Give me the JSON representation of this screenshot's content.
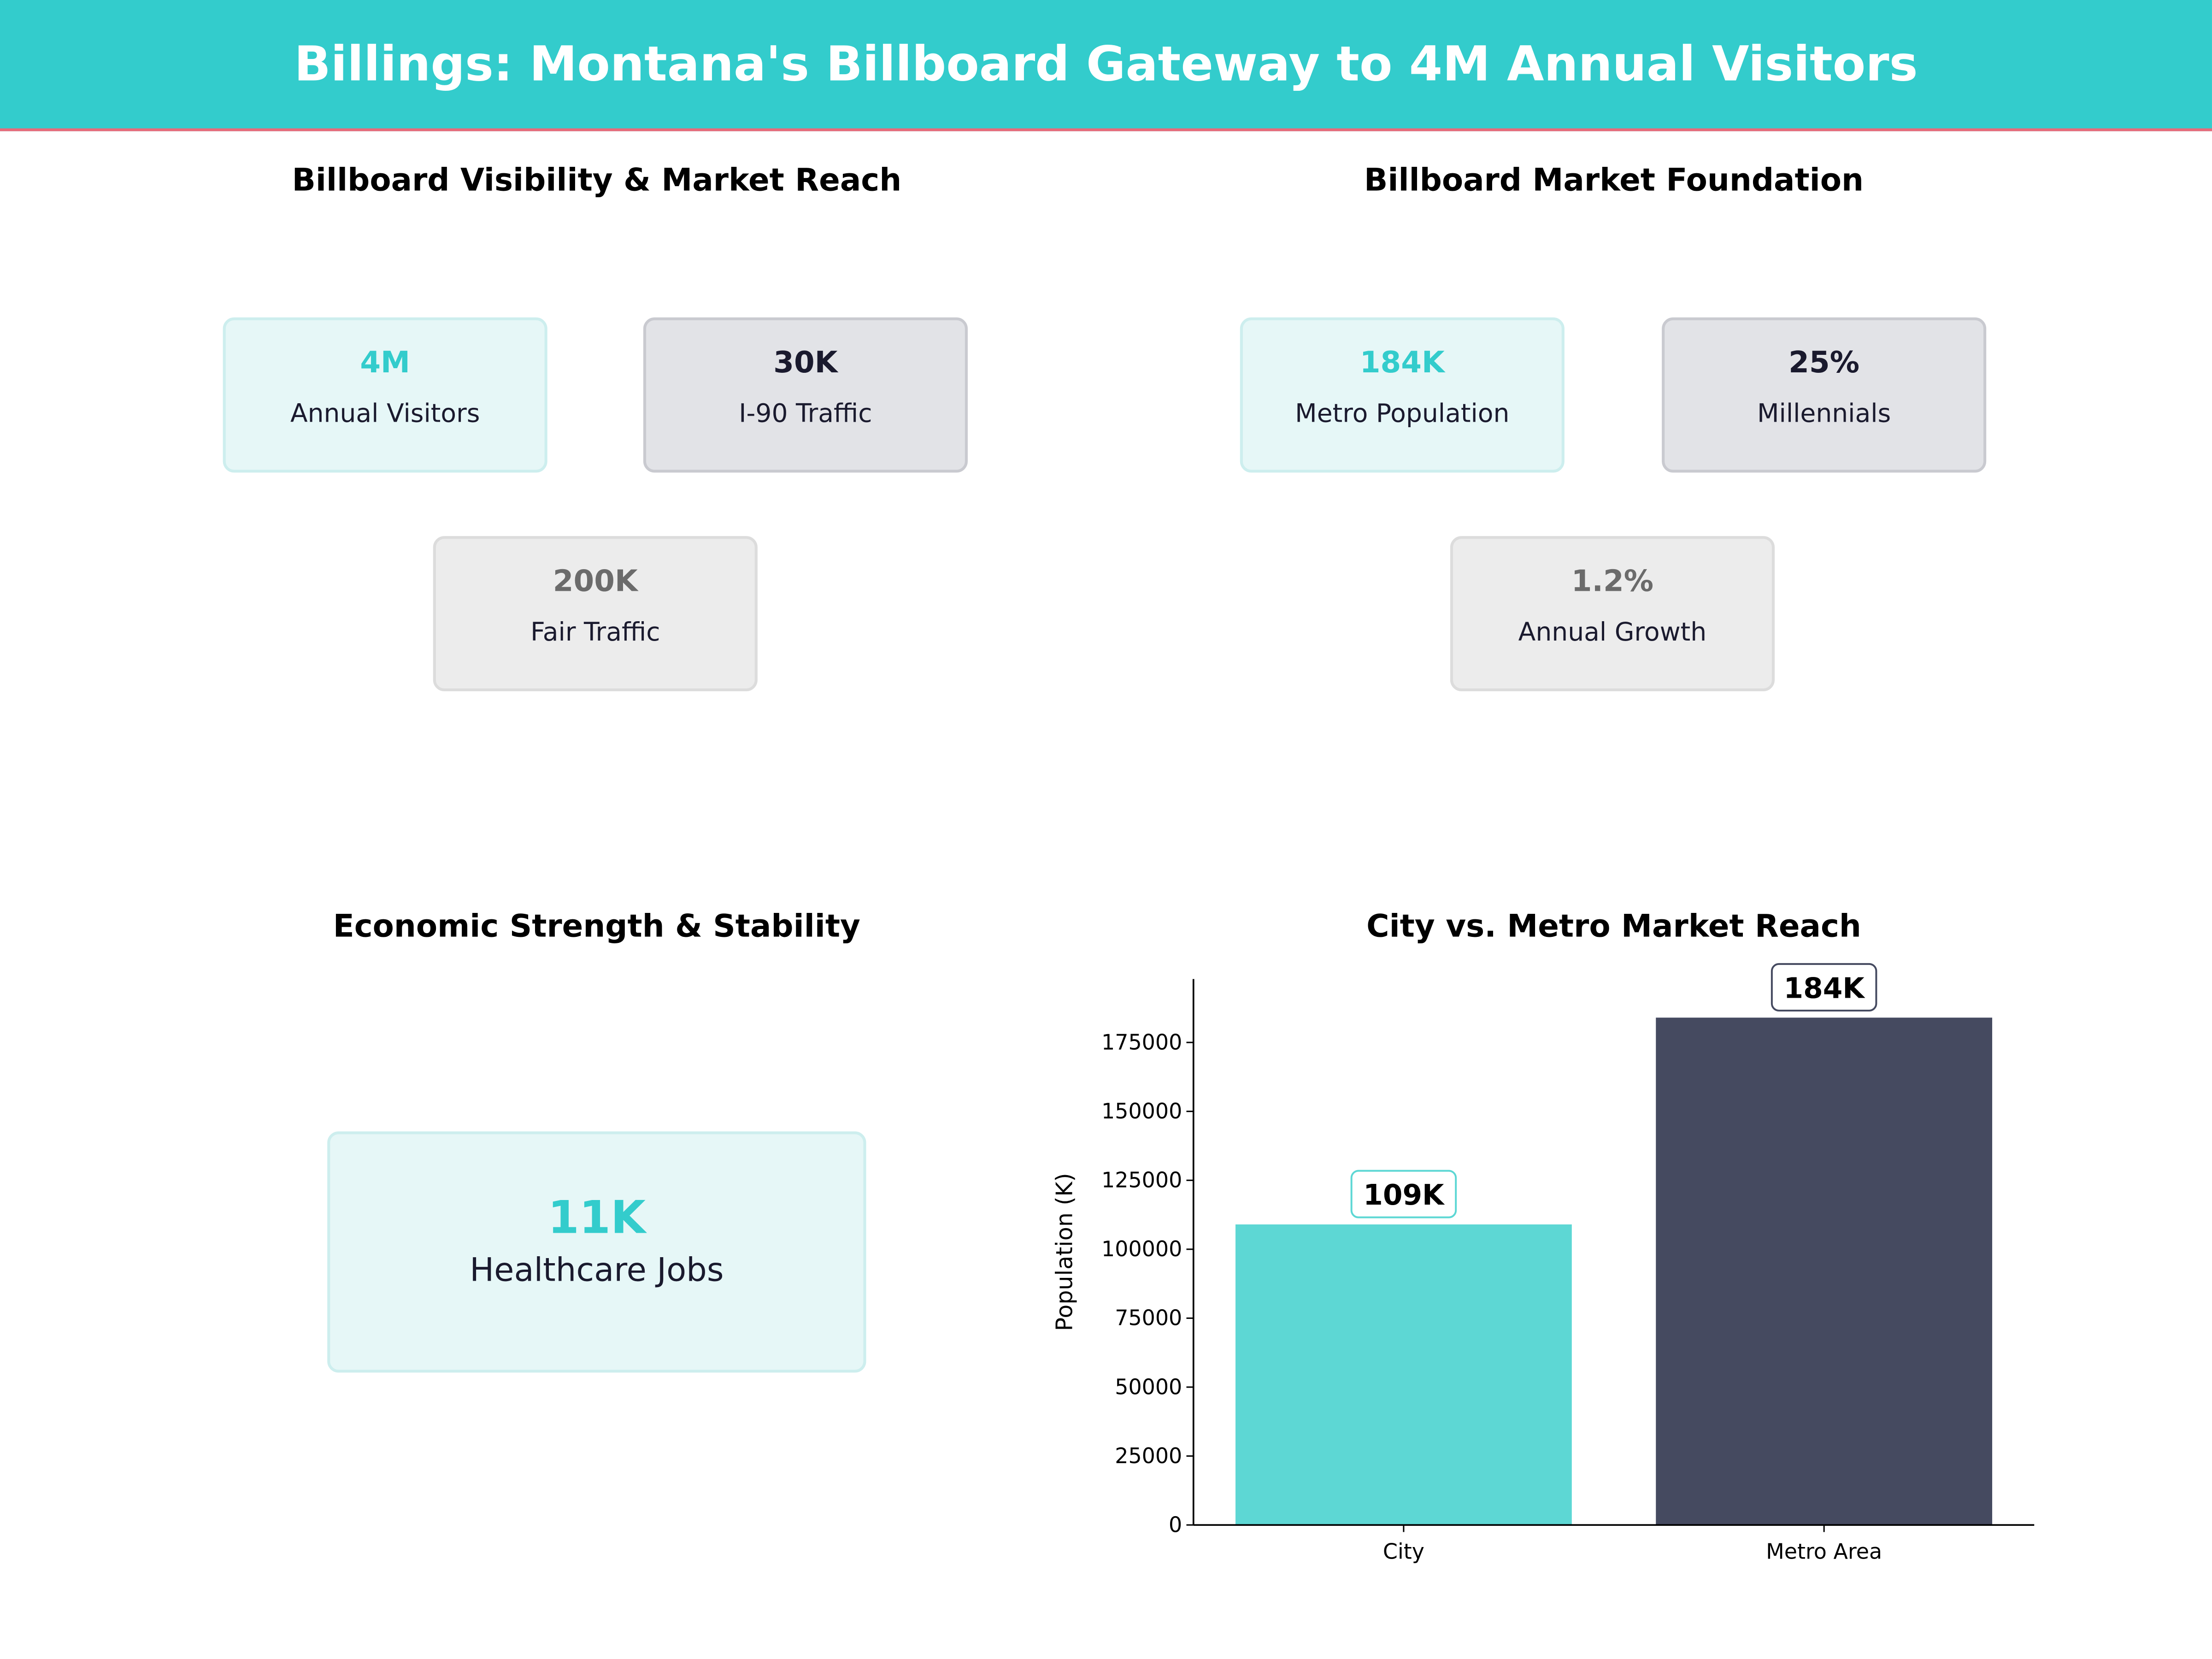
{
  "header": {
    "title": "Billings: Montana's Billboard Gateway to 4M Annual Visitors"
  },
  "panels": {
    "visibility": {
      "title": "Billboard Visibility & Market Reach",
      "cards": [
        {
          "value": "4M",
          "label": "Annual Visitors",
          "style": "teal"
        },
        {
          "value": "30K",
          "label": "I-90 Traffic",
          "style": "dark"
        },
        {
          "value": "200K",
          "label": "Fair Traffic",
          "style": "light"
        }
      ]
    },
    "foundation": {
      "title": "Billboard Market Foundation",
      "cards": [
        {
          "value": "184K",
          "label": "Metro Population",
          "style": "teal"
        },
        {
          "value": "25%",
          "label": "Millennials",
          "style": "dark"
        },
        {
          "value": "1.2%",
          "label": "Annual Growth",
          "style": "light"
        }
      ]
    },
    "economic": {
      "title": "Economic Strength & Stability",
      "card": {
        "value": "11K",
        "label": "Healthcare Jobs"
      }
    }
  },
  "colors": {
    "accent": "#33cccc",
    "navy": "#1a1a2e",
    "city_bar": "#5dd7d4",
    "metro_bar": "#454a60",
    "header_line": "#e86a7a"
  },
  "chart_data": {
    "type": "bar",
    "title": "City vs. Metro Market Reach",
    "categories": [
      "City",
      "Metro Area"
    ],
    "values": [
      109000,
      184000
    ],
    "data_labels": [
      "109K",
      "184K"
    ],
    "xlabel": "",
    "ylabel": "Population (K)",
    "ylim": [
      0,
      198000
    ],
    "yticks": [
      0,
      25000,
      50000,
      75000,
      100000,
      125000,
      150000,
      175000
    ],
    "grid": false
  }
}
